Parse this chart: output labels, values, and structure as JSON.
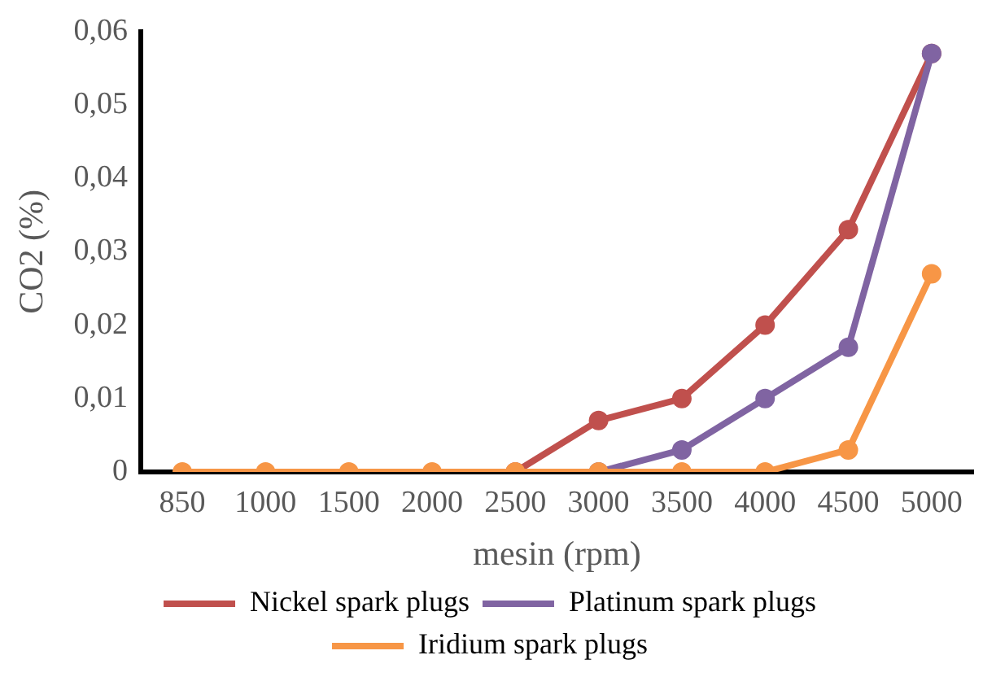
{
  "chart_data": {
    "type": "line",
    "xlabel": "mesin (rpm)",
    "ylabel": "CO2 (%)",
    "categories": [
      "850",
      "1000",
      "1500",
      "2000",
      "2500",
      "3000",
      "3500",
      "4000",
      "4500",
      "5000"
    ],
    "ylim": [
      0,
      0.06
    ],
    "yticks": [
      0,
      {
        "value": 0.01,
        "label": "0,01"
      },
      {
        "value": 0.02,
        "label": "0,02"
      },
      {
        "value": 0.03,
        "label": "0,03"
      },
      {
        "value": 0.04,
        "label": "0,04"
      },
      {
        "value": 0.05,
        "label": "0,05"
      },
      {
        "value": 0.06,
        "label": "0,06"
      }
    ],
    "grid": false,
    "legend": "bottom",
    "marker": "circle",
    "line_style": "solid",
    "series": [
      {
        "name": "Nickel spark plugs",
        "color": "#c0504d",
        "values": [
          null,
          null,
          null,
          null,
          0,
          0.007,
          0.01,
          0.02,
          0.033,
          0.057
        ]
      },
      {
        "name": "Platinum spark plugs",
        "color": "#8064a2",
        "values": [
          null,
          null,
          null,
          null,
          null,
          0,
          0.003,
          0.01,
          0.017,
          0.057
        ]
      },
      {
        "name": "Iridium spark plugs",
        "color": "#f79646",
        "values": [
          0,
          0,
          0,
          0,
          0,
          0,
          0,
          0,
          0.003,
          0.027
        ]
      }
    ]
  }
}
